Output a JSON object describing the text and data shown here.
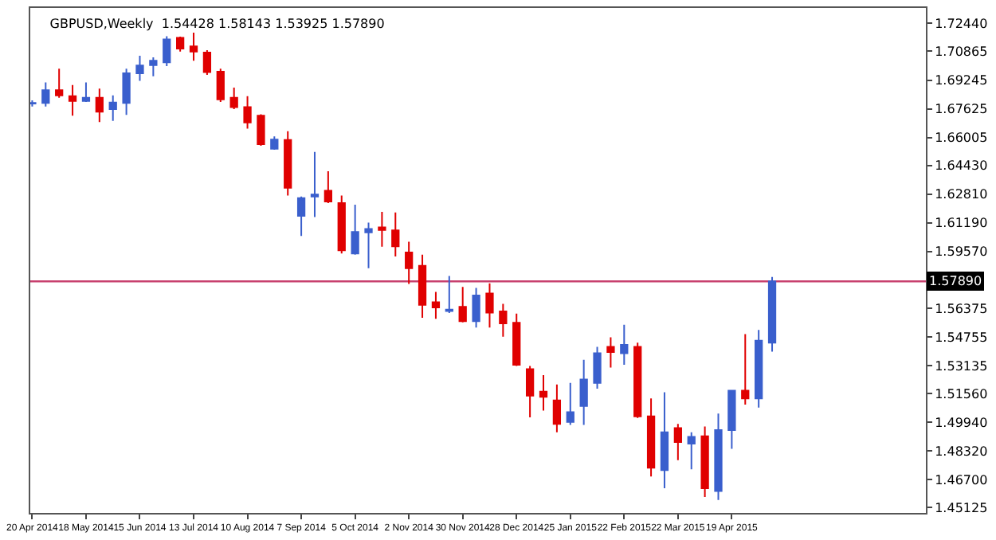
{
  "chart_data": {
    "type": "candlestick",
    "title": "GBPUSD,Weekly  1.54428 1.58143 1.53925 1.57890",
    "x": [
      "2014-04-20",
      "2014-04-27",
      "2014-05-04",
      "2014-05-11",
      "2014-05-18",
      "2014-05-25",
      "2014-06-01",
      "2014-06-08",
      "2014-06-15",
      "2014-06-22",
      "2014-06-29",
      "2014-07-06",
      "2014-07-13",
      "2014-07-20",
      "2014-07-27",
      "2014-08-03",
      "2014-08-10",
      "2014-08-17",
      "2014-08-24",
      "2014-08-31",
      "2014-09-07",
      "2014-09-14",
      "2014-09-21",
      "2014-09-28",
      "2014-10-05",
      "2014-10-12",
      "2014-10-19",
      "2014-10-26",
      "2014-11-02",
      "2014-11-09",
      "2014-11-16",
      "2014-11-23",
      "2014-11-30",
      "2014-12-07",
      "2014-12-14",
      "2014-12-21",
      "2014-12-28",
      "2015-01-04",
      "2015-01-11",
      "2015-01-18",
      "2015-01-25",
      "2015-02-01",
      "2015-02-08",
      "2015-02-15",
      "2015-02-22",
      "2015-03-01",
      "2015-03-08",
      "2015-03-15",
      "2015-03-22",
      "2015-03-29",
      "2015-04-05",
      "2015-04-12",
      "2015-04-19",
      "2015-04-26",
      "2015-05-03",
      "2015-05-10"
    ],
    "ohlc": [
      [
        1.6792,
        1.681,
        1.6775,
        1.6795
      ],
      [
        1.6795,
        1.6911,
        1.6775,
        1.6867
      ],
      [
        1.6867,
        1.6989,
        1.6824,
        1.6838
      ],
      [
        1.6833,
        1.6896,
        1.6723,
        1.6807
      ],
      [
        1.6807,
        1.6911,
        1.6801,
        1.6824
      ],
      [
        1.6824,
        1.6876,
        1.6688,
        1.6746
      ],
      [
        1.676,
        1.6838,
        1.6694,
        1.6798
      ],
      [
        1.6795,
        1.6989,
        1.6728,
        1.6963
      ],
      [
        1.6963,
        1.7062,
        1.692,
        1.7006
      ],
      [
        1.7009,
        1.7053,
        1.6946,
        1.7033
      ],
      [
        1.7024,
        1.7172,
        1.7003,
        1.7154
      ],
      [
        1.7163,
        1.7169,
        1.7085,
        1.7102
      ],
      [
        1.7114,
        1.7192,
        1.7033,
        1.7085
      ],
      [
        1.7079,
        1.7093,
        1.6954,
        1.6969
      ],
      [
        1.6972,
        1.6989,
        1.6801,
        1.6815
      ],
      [
        1.6824,
        1.6882,
        1.676,
        1.6772
      ],
      [
        1.6772,
        1.6833,
        1.665,
        1.6685
      ],
      [
        1.6723,
        1.6731,
        1.6554,
        1.6563
      ],
      [
        1.6537,
        1.6607,
        1.6531,
        1.6589
      ],
      [
        1.6586,
        1.6636,
        1.6273,
        1.6317
      ],
      [
        1.6158,
        1.6268,
        1.6045,
        1.6259
      ],
      [
        1.6268,
        1.6519,
        1.6152,
        1.6279
      ],
      [
        1.63,
        1.641,
        1.623,
        1.6239
      ],
      [
        1.623,
        1.6273,
        1.5946,
        1.5964
      ],
      [
        1.5946,
        1.6221,
        1.594,
        1.6068
      ],
      [
        1.6065,
        1.612,
        1.5863,
        1.6085
      ],
      [
        1.6094,
        1.6181,
        1.5984,
        1.6079
      ],
      [
        1.6077,
        1.6178,
        1.5929,
        1.5987
      ],
      [
        1.5952,
        1.6013,
        1.5775,
        1.5863
      ],
      [
        1.5877,
        1.594,
        1.5584,
        1.5657
      ],
      [
        1.5671,
        1.5729,
        1.5578,
        1.5642
      ],
      [
        1.5622,
        1.5819,
        1.561,
        1.563
      ],
      [
        1.5645,
        1.5758,
        1.5558,
        1.5564
      ],
      [
        1.5564,
        1.5752,
        1.5529,
        1.5709
      ],
      [
        1.572,
        1.5778,
        1.5529,
        1.5613
      ],
      [
        1.5619,
        1.5662,
        1.5477,
        1.5552
      ],
      [
        1.5555,
        1.5607,
        1.5312,
        1.5318
      ],
      [
        1.5294,
        1.5312,
        1.5022,
        1.5144
      ],
      [
        1.5167,
        1.526,
        1.506,
        1.5138
      ],
      [
        1.5118,
        1.5207,
        1.4938,
        1.4985
      ],
      [
        1.4996,
        1.5216,
        1.4979,
        1.5051
      ],
      [
        1.5086,
        1.5347,
        1.4979,
        1.5236
      ],
      [
        1.5216,
        1.542,
        1.5184,
        1.5384
      ],
      [
        1.542,
        1.5474,
        1.5303,
        1.539
      ],
      [
        1.5384,
        1.5544,
        1.5318,
        1.5431
      ],
      [
        1.542,
        1.5443,
        1.5019,
        1.5028
      ],
      [
        1.5028,
        1.5129,
        1.4689,
        1.4738
      ],
      [
        1.4724,
        1.5164,
        1.4622,
        1.4938
      ],
      [
        1.4961,
        1.4985,
        1.4781,
        1.4883
      ],
      [
        1.4874,
        1.4938,
        1.4729,
        1.4912
      ],
      [
        1.4915,
        1.497,
        1.4573,
        1.4622
      ],
      [
        1.4607,
        1.5043,
        1.4556,
        1.495
      ],
      [
        1.495,
        1.5173,
        1.4845,
        1.5173
      ],
      [
        1.5173,
        1.5491,
        1.5094,
        1.5129
      ],
      [
        1.5129,
        1.5515,
        1.5077,
        1.5454
      ],
      [
        1.54428,
        1.58143,
        1.53925,
        1.5789
      ]
    ],
    "colors": [
      "#3a5fcd",
      "#3a5fcd",
      "#e00000",
      "#e00000",
      "#3a5fcd",
      "#e00000",
      "#3a5fcd",
      "#3a5fcd",
      "#3a5fcd",
      "#3a5fcd",
      "#3a5fcd",
      "#e00000",
      "#e00000",
      "#e00000",
      "#e00000",
      "#e00000",
      "#e00000",
      "#e00000",
      "#3a5fcd",
      "#e00000",
      "#3a5fcd",
      "#3a5fcd",
      "#e00000",
      "#e00000",
      "#3a5fcd",
      "#3a5fcd",
      "#e00000",
      "#e00000",
      "#e00000",
      "#e00000",
      "#e00000",
      "#3a5fcd",
      "#e00000",
      "#3a5fcd",
      "#e00000",
      "#e00000",
      "#e00000",
      "#e00000",
      "#e00000",
      "#e00000",
      "#3a5fcd",
      "#3a5fcd",
      "#3a5fcd",
      "#e00000",
      "#3a5fcd",
      "#e00000",
      "#e00000",
      "#3a5fcd",
      "#e00000",
      "#3a5fcd",
      "#e00000",
      "#3a5fcd",
      "#3a5fcd",
      "#e00000",
      "#3a5fcd",
      "#3a5fcd"
    ],
    "xlim": [
      "2014-04-19",
      "2015-07-29"
    ],
    "xticks": [
      {
        "value": "2014-04-20",
        "label": "20 Apr 2014"
      },
      {
        "value": "2014-05-18",
        "label": "18 May 2014"
      },
      {
        "value": "2014-06-15",
        "label": "15 Jun 2014"
      },
      {
        "value": "2014-07-13",
        "label": "13 Jul 2014"
      },
      {
        "value": "2014-08-10",
        "label": "10 Aug 2014"
      },
      {
        "value": "2014-09-07",
        "label": "7 Sep 2014"
      },
      {
        "value": "2014-10-05",
        "label": "5 Oct 2014"
      },
      {
        "value": "2014-11-02",
        "label": "2 Nov 2014"
      },
      {
        "value": "2014-11-30",
        "label": "30 Nov 2014"
      },
      {
        "value": "2014-12-28",
        "label": "28 Dec 2014"
      },
      {
        "value": "2015-01-25",
        "label": "25 Jan 2015"
      },
      {
        "value": "2015-02-22",
        "label": "22 Feb 2015"
      },
      {
        "value": "2015-03-22",
        "label": "22 Mar 2015"
      },
      {
        "value": "2015-04-19",
        "label": "19 Apr 2015"
      }
    ],
    "ylim": [
      1.4483,
      1.7331
    ],
    "yticks": [
      {
        "value": 1.7244,
        "label": "1.72440"
      },
      {
        "value": 1.70865,
        "label": "1.70865"
      },
      {
        "value": 1.69245,
        "label": "1.69245"
      },
      {
        "value": 1.67625,
        "label": "1.67625"
      },
      {
        "value": 1.66005,
        "label": "1.66005"
      },
      {
        "value": 1.6443,
        "label": "1.64430"
      },
      {
        "value": 1.6281,
        "label": "1.62810"
      },
      {
        "value": 1.6119,
        "label": "1.61190"
      },
      {
        "value": 1.5957,
        "label": "1.59570"
      },
      {
        "value": 1.56375,
        "label": "1.56375"
      },
      {
        "value": 1.54755,
        "label": "1.54755"
      },
      {
        "value": 1.53135,
        "label": "1.53135"
      },
      {
        "value": 1.5156,
        "label": "1.51560"
      },
      {
        "value": 1.4994,
        "label": "1.49940"
      },
      {
        "value": 1.4832,
        "label": "1.48320"
      },
      {
        "value": 1.467,
        "label": "1.46700"
      },
      {
        "value": 1.45125,
        "label": "1.45125"
      }
    ],
    "ref_lines": [
      {
        "axis": "y",
        "value": 1.5789,
        "label": "1.57890",
        "color": "#c8406e"
      }
    ],
    "grid": false
  }
}
